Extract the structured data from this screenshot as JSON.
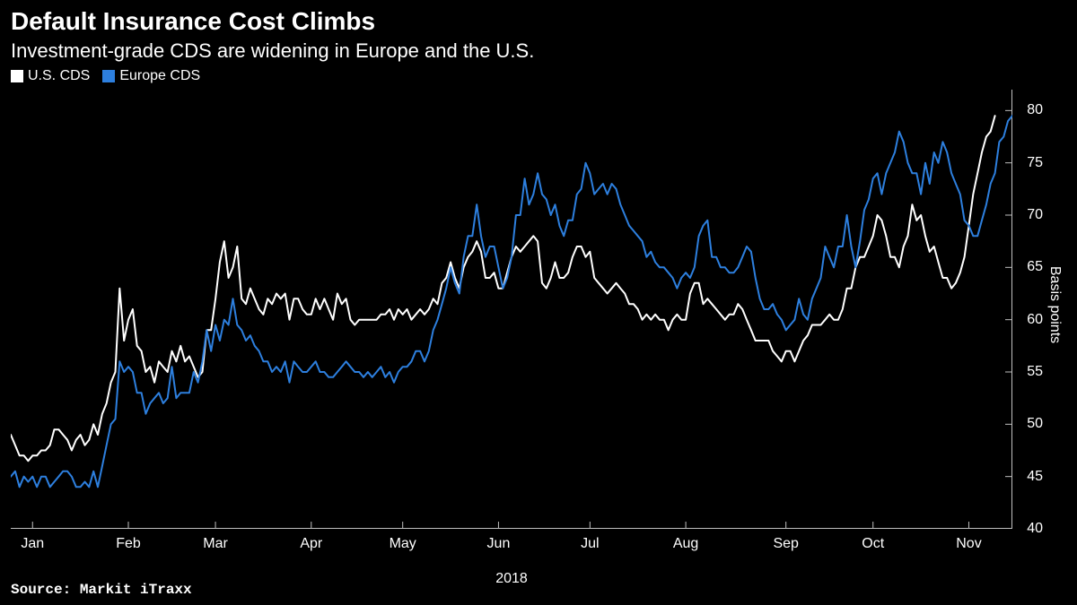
{
  "title": "Default Insurance Cost Climbs",
  "subtitle": "Investment-grade CDS are widening in Europe and the U.S.",
  "source": "Source: Markit iTraxx",
  "legend": [
    {
      "label": "U.S. CDS",
      "color": "#ffffff"
    },
    {
      "label": "Europe CDS",
      "color": "#2d7fde"
    }
  ],
  "chart": {
    "type": "line",
    "background_color": "#000000",
    "grid_color": "#000000",
    "axis_color": "#bfbfbf",
    "tick_color": "#bfbfbf",
    "title_fontsize": 28,
    "subtitle_fontsize": 22,
    "label_fontsize": 16,
    "line_width": 2,
    "xlim": [
      0,
      230
    ],
    "ylim": [
      40,
      82
    ],
    "y_ticks": [
      40,
      45,
      50,
      55,
      60,
      65,
      70,
      75,
      80
    ],
    "y_axis_label": "Basis points",
    "x_ticks": [
      {
        "pos": 5,
        "label": "Jan"
      },
      {
        "pos": 27,
        "label": "Feb"
      },
      {
        "pos": 47,
        "label": "Mar"
      },
      {
        "pos": 69,
        "label": "Apr"
      },
      {
        "pos": 90,
        "label": "May"
      },
      {
        "pos": 112,
        "label": "Jun"
      },
      {
        "pos": 133,
        "label": "Jul"
      },
      {
        "pos": 155,
        "label": "Aug"
      },
      {
        "pos": 178,
        "label": "Sep"
      },
      {
        "pos": 198,
        "label": "Oct"
      },
      {
        "pos": 220,
        "label": "Nov"
      }
    ],
    "x_axis_year": "2018",
    "series": [
      {
        "name": "U.S. CDS",
        "color": "#ffffff",
        "data": [
          49,
          48,
          47,
          47,
          46.5,
          47,
          47,
          47.5,
          47.5,
          48,
          49.5,
          49.5,
          49,
          48.5,
          47.5,
          48.5,
          49,
          48,
          48.5,
          50,
          49,
          51,
          52,
          54,
          55,
          63,
          58,
          60,
          61,
          57.5,
          57,
          55,
          55.5,
          54,
          56,
          55.5,
          55,
          57,
          56,
          57.5,
          56,
          56.5,
          55.5,
          54.5,
          55,
          59,
          59,
          62,
          65.5,
          67.5,
          64,
          65,
          67,
          62,
          61.5,
          63,
          62,
          61,
          60.5,
          62,
          61.5,
          62.5,
          62,
          62.5,
          60,
          62,
          62,
          61,
          60.5,
          60.5,
          62,
          61,
          62,
          61,
          60,
          62.5,
          61.5,
          62,
          60,
          59.5,
          60,
          60,
          60,
          60,
          60,
          60.5,
          60.5,
          61,
          60,
          61,
          60.5,
          61,
          60,
          60.5,
          61,
          60.5,
          61,
          62,
          61.5,
          63.5,
          64,
          65.5,
          64,
          63,
          65,
          66,
          66.5,
          67.5,
          66.5,
          64,
          64,
          64.5,
          63,
          63,
          64.5,
          66,
          67,
          66.5,
          67,
          67.5,
          68,
          67.5,
          63.5,
          63,
          64,
          65.5,
          64,
          64,
          64.5,
          66,
          67,
          67,
          66,
          66.5,
          64,
          63.5,
          63,
          62.5,
          63,
          63.5,
          63,
          62.5,
          61.5,
          61.5,
          61,
          60,
          60.5,
          60,
          60.5,
          60,
          60,
          59,
          60,
          60.5,
          60,
          60,
          62.5,
          63.5,
          63.5,
          61.5,
          62,
          61.5,
          61,
          60.5,
          60,
          60.5,
          60.5,
          61.5,
          61,
          60,
          59,
          58,
          58,
          58,
          58,
          57,
          56.5,
          56,
          57,
          57,
          56,
          57,
          58,
          58.5,
          59.5,
          59.5,
          59.5,
          60,
          60.5,
          60,
          60,
          61,
          63,
          63,
          65,
          66,
          66,
          67,
          68,
          70,
          69.5,
          68,
          66,
          66,
          65,
          67,
          68,
          71,
          69.5,
          70,
          68,
          66.5,
          67,
          65.5,
          64,
          64,
          63,
          63.5,
          64.5,
          66,
          69,
          72,
          74,
          76,
          77.5,
          78,
          79.5
        ]
      },
      {
        "name": "Europe CDS",
        "color": "#2d7fde",
        "data": [
          45,
          45.5,
          44,
          45,
          44.5,
          45,
          44,
          45,
          45,
          44,
          44.5,
          45,
          45.5,
          45.5,
          45,
          44,
          44,
          44.5,
          44,
          45.5,
          44,
          46,
          48,
          50,
          50.5,
          56,
          55,
          55.5,
          55,
          53,
          53,
          51,
          52,
          52.5,
          53,
          52,
          52.5,
          55.5,
          52.5,
          53,
          53,
          53,
          55,
          54,
          56,
          59,
          57,
          59.5,
          58,
          60,
          59.5,
          62,
          59.5,
          59,
          58,
          58.5,
          57.5,
          57,
          56,
          56,
          55,
          55.5,
          55,
          56,
          54,
          56,
          55.5,
          55,
          55,
          55.5,
          56,
          55,
          55,
          54.5,
          54.5,
          55,
          55.5,
          56,
          55.5,
          55,
          55,
          54.5,
          55,
          54.5,
          55,
          55.5,
          54.5,
          55,
          54,
          55,
          55.5,
          55.5,
          56,
          57,
          57,
          56,
          57,
          59,
          60,
          61.5,
          63,
          65,
          63.5,
          62.5,
          66,
          68,
          68,
          71,
          68,
          66,
          67,
          67,
          65,
          63,
          64,
          66,
          70,
          70,
          73.5,
          71,
          72,
          74,
          72,
          71.5,
          70,
          71,
          69,
          68,
          69.5,
          69.5,
          72,
          72.5,
          75,
          74,
          72,
          72.5,
          73,
          72,
          73,
          72.5,
          71,
          70,
          69,
          68.5,
          68,
          67.5,
          66,
          66.5,
          65.5,
          65,
          65,
          64.5,
          64,
          63,
          64,
          64.5,
          64,
          65,
          68,
          69,
          69.5,
          66,
          66,
          65,
          65,
          64.5,
          64.5,
          65,
          66,
          67,
          66.5,
          64,
          62,
          61,
          61,
          61.5,
          60.5,
          60,
          59,
          59.5,
          60,
          62,
          60.5,
          60,
          62,
          63,
          64,
          67,
          66,
          65,
          67,
          67,
          70,
          67,
          65,
          67.5,
          70.5,
          71.5,
          73.5,
          74,
          72,
          74,
          75,
          76,
          78,
          77,
          75,
          74,
          74,
          72,
          75,
          73,
          76,
          75,
          77,
          76,
          74,
          73,
          72,
          69.5,
          69,
          68,
          68,
          69.5,
          71,
          73,
          74,
          77,
          77.5,
          79,
          79.5,
          80
        ]
      }
    ]
  }
}
